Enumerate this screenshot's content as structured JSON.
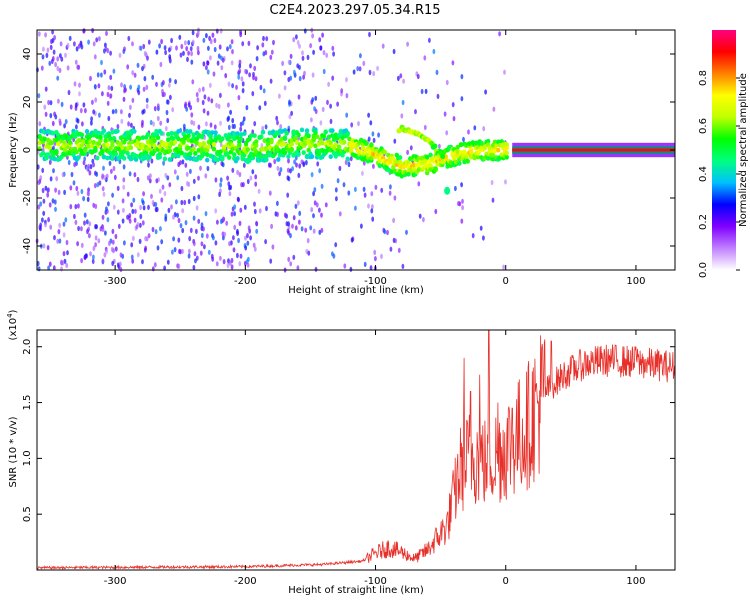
{
  "title": "C2E4.2023.297.05.34.R15",
  "chart_data": [
    {
      "type": "heatmap",
      "xlabel": "Height of straight line (km)",
      "ylabel": "Frequency (Hz)",
      "xlim": [
        -360,
        130
      ],
      "ylim": [
        -50,
        50
      ],
      "xticks": [
        -300,
        -200,
        -100,
        0,
        100
      ],
      "yticks": [
        -40,
        -20,
        0,
        20,
        40
      ],
      "colorbar": {
        "label": "Normalized spectral amplitude",
        "range": [
          0.0,
          1.0
        ],
        "ticks": [
          0.0,
          0.2,
          0.4,
          0.6,
          0.8
        ],
        "tick_labels": [
          "0.0",
          "0.2",
          "0.4",
          "0.6",
          "0.8"
        ],
        "colormap": [
          "#ffffff",
          "#c080ff",
          "#8000ff",
          "#0000ff",
          "#00c0ff",
          "#00ff80",
          "#00ff00",
          "#c0ff00",
          "#ffff00",
          "#ff8000",
          "#ff0000",
          "#ff0080"
        ]
      },
      "ridge": [
        {
          "x": -350,
          "y": 2
        },
        {
          "x": -300,
          "y": 2
        },
        {
          "x": -250,
          "y": 2
        },
        {
          "x": -200,
          "y": 1
        },
        {
          "x": -150,
          "y": 3
        },
        {
          "x": -120,
          "y": 2
        },
        {
          "x": -100,
          "y": -2
        },
        {
          "x": -80,
          "y": -7
        },
        {
          "x": -60,
          "y": -6
        },
        {
          "x": -45,
          "y": -3
        },
        {
          "x": -30,
          "y": -1
        },
        {
          "x": -10,
          "y": 0
        },
        {
          "x": 0,
          "y": 0
        },
        {
          "x": 50,
          "y": 0
        },
        {
          "x": 128,
          "y": 0
        }
      ],
      "upper_branch": [
        {
          "x": -80,
          "y": 9
        },
        {
          "x": -70,
          "y": 8
        },
        {
          "x": -60,
          "y": 4
        },
        {
          "x": -50,
          "y": -2
        }
      ],
      "isolated_blob": {
        "x": -45,
        "y": -17
      }
    },
    {
      "type": "line",
      "xlabel": "Height of straight line (km)",
      "ylabel": "SNR (10 * v/v)",
      "yscale_label": "(x10",
      "yscale_exp": "4",
      "yscale_close": ")",
      "xlim": [
        -360,
        130
      ],
      "ylim": [
        0,
        2.15
      ],
      "xticks": [
        -300,
        -200,
        -100,
        0,
        100
      ],
      "yticks": [
        0.5,
        1.0,
        1.5,
        2.0
      ],
      "ytick_labels": [
        "0.5",
        "1.0",
        "1.5",
        "2.0"
      ],
      "color": "#e8302a",
      "envelope": [
        {
          "x": -360,
          "y": 0.02
        },
        {
          "x": -200,
          "y": 0.03
        },
        {
          "x": -140,
          "y": 0.05
        },
        {
          "x": -110,
          "y": 0.08
        },
        {
          "x": -100,
          "y": 0.15
        },
        {
          "x": -90,
          "y": 0.2
        },
        {
          "x": -80,
          "y": 0.16
        },
        {
          "x": -70,
          "y": 0.1
        },
        {
          "x": -60,
          "y": 0.18
        },
        {
          "x": -45,
          "y": 0.4
        },
        {
          "x": -35,
          "y": 0.9
        },
        {
          "x": -25,
          "y": 1.05
        },
        {
          "x": -15,
          "y": 0.95
        },
        {
          "x": 0,
          "y": 1.1
        },
        {
          "x": 15,
          "y": 1.25
        },
        {
          "x": 30,
          "y": 1.6
        },
        {
          "x": 45,
          "y": 1.75
        },
        {
          "x": 60,
          "y": 1.85
        },
        {
          "x": 80,
          "y": 1.88
        },
        {
          "x": 100,
          "y": 1.86
        },
        {
          "x": 130,
          "y": 1.82
        }
      ],
      "spikes": [
        {
          "x": -32,
          "y": 1.9
        },
        {
          "x": -27,
          "y": 1.6
        },
        {
          "x": -20,
          "y": 1.75
        },
        {
          "x": -13,
          "y": 2.15
        },
        {
          "x": -6,
          "y": 1.5
        },
        {
          "x": 5,
          "y": 1.45
        },
        {
          "x": 35,
          "y": 2.05
        },
        {
          "x": 100,
          "y": 2.0
        }
      ]
    }
  ]
}
